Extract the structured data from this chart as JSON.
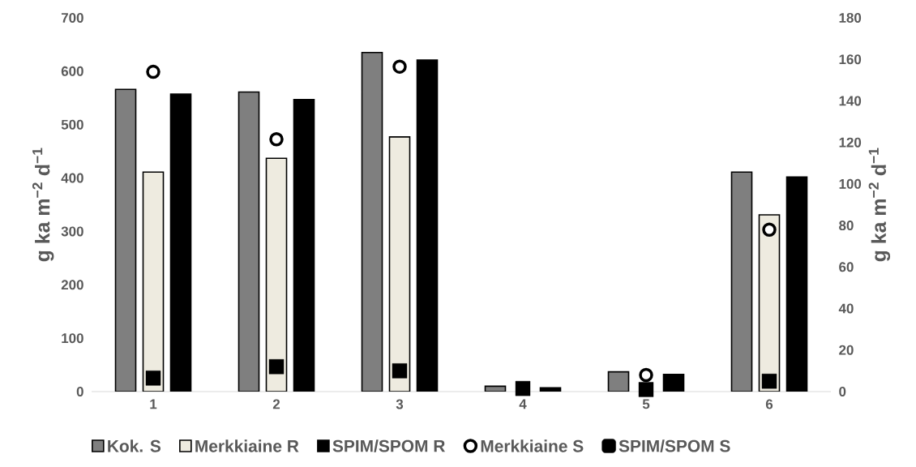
{
  "chart_data": {
    "type": "bar",
    "categories": [
      "1",
      "2",
      "3",
      "4",
      "5",
      "6"
    ],
    "ylabel": "g ka  m$^{−2}$ d$^{−1}$",
    "y2label": "g ka  m$^{−2}$ d$^{−1}$",
    "ylim": [
      0,
      700
    ],
    "yticks": [
      0,
      100,
      200,
      300,
      400,
      500,
      600,
      700
    ],
    "y2lim": [
      0,
      180
    ],
    "y2ticks": [
      0,
      20,
      40,
      60,
      80,
      100,
      120,
      140,
      160,
      180
    ],
    "legend": "bottom",
    "series": [
      {
        "name": "Kok. S",
        "color": "#7f7f7f",
        "values": [
          566,
          561,
          635,
          10,
          37,
          411
        ]
      },
      {
        "name": "Merkkiaine R",
        "color": "#eeebe0",
        "values": [
          411,
          437,
          477,
          null,
          null,
          331
        ]
      },
      {
        "name": "SPIM/SPOM R",
        "color": "#000000",
        "values": [
          557,
          547,
          621,
          7,
          32,
          402
        ]
      },
      {
        "name": "Merkkiaine S",
        "type": "scatter",
        "axis": "y2",
        "marker": "circle",
        "color": "#000000",
        "x": [
          "1",
          "2",
          "3",
          "4",
          "5",
          "6"
        ],
        "values": [
          154,
          121.5,
          156.5,
          null,
          8,
          78
        ]
      },
      {
        "name": "SPIM/SPOM S",
        "type": "scatter",
        "axis": "y2",
        "marker": "square",
        "color": "#000000",
        "x": [
          "1",
          "2",
          "3",
          "4",
          "5",
          "6"
        ],
        "values": [
          6.5,
          12,
          10,
          1.5,
          1,
          5
        ]
      }
    ]
  }
}
